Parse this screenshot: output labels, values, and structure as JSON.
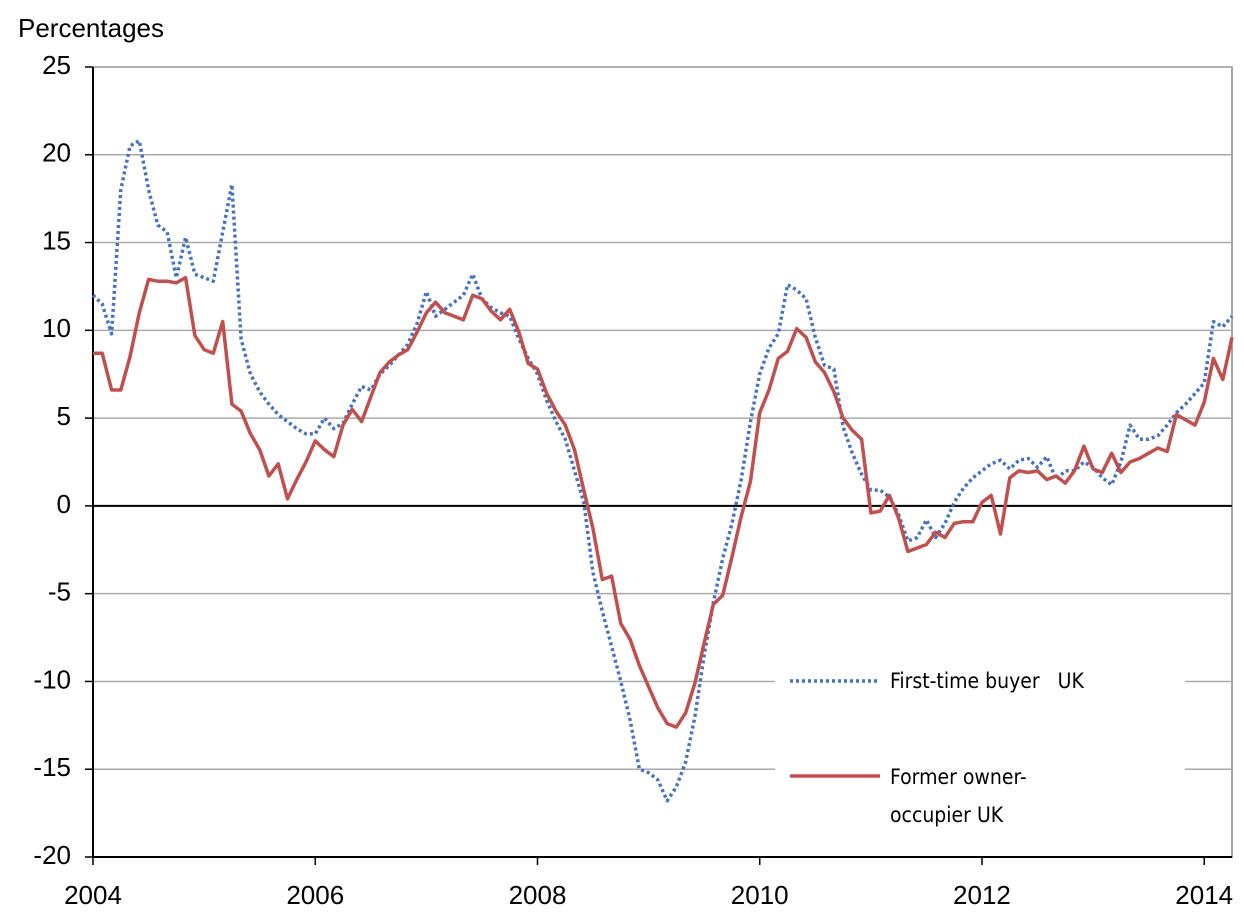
{
  "chart_data": {
    "type": "line",
    "y_label": "Percentages",
    "x": [
      2004,
      2004.083,
      2004.167,
      2004.25,
      2004.333,
      2004.417,
      2004.5,
      2004.583,
      2004.667,
      2004.75,
      2004.833,
      2004.917,
      2005,
      2005.083,
      2005.167,
      2005.25,
      2005.333,
      2005.417,
      2005.5,
      2005.583,
      2005.667,
      2005.75,
      2005.833,
      2005.917,
      2006,
      2006.083,
      2006.167,
      2006.25,
      2006.333,
      2006.417,
      2006.5,
      2006.583,
      2006.667,
      2006.75,
      2006.833,
      2006.917,
      2007,
      2007.083,
      2007.167,
      2007.25,
      2007.333,
      2007.417,
      2007.5,
      2007.583,
      2007.667,
      2007.75,
      2007.833,
      2007.917,
      2008,
      2008.083,
      2008.167,
      2008.25,
      2008.333,
      2008.417,
      2008.5,
      2008.583,
      2008.667,
      2008.75,
      2008.833,
      2008.917,
      2009,
      2009.083,
      2009.167,
      2009.25,
      2009.333,
      2009.417,
      2009.5,
      2009.583,
      2009.667,
      2009.75,
      2009.833,
      2009.917,
      2010,
      2010.083,
      2010.167,
      2010.25,
      2010.333,
      2010.417,
      2010.5,
      2010.583,
      2010.667,
      2010.75,
      2010.833,
      2010.917,
      2011,
      2011.083,
      2011.167,
      2011.25,
      2011.333,
      2011.417,
      2011.5,
      2011.583,
      2011.667,
      2011.75,
      2011.833,
      2011.917,
      2012,
      2012.083,
      2012.167,
      2012.25,
      2012.333,
      2012.417,
      2012.5,
      2012.583,
      2012.667,
      2012.75,
      2012.833,
      2012.917,
      2013,
      2013.083,
      2013.167,
      2013.25,
      2013.333,
      2013.417,
      2013.5,
      2013.583,
      2013.667,
      2013.75,
      2013.833,
      2013.917,
      2014,
      2014.083,
      2014.167,
      2014.25
    ],
    "series": [
      {
        "name": "First-time buyer   UK",
        "color": "#4472c4",
        "style": "dotted",
        "values": [
          12.0,
          11.5,
          9.8,
          18.0,
          20.5,
          20.8,
          18.0,
          16.0,
          15.6,
          13.0,
          15.3,
          13.2,
          13.0,
          12.8,
          15.6,
          18.3,
          9.5,
          7.5,
          6.5,
          5.8,
          5.2,
          4.8,
          4.4,
          4.1,
          4.1,
          5.0,
          4.4,
          4.7,
          5.8,
          6.8,
          6.6,
          7.5,
          8.0,
          8.6,
          9.2,
          10.4,
          12.2,
          10.8,
          11.2,
          11.6,
          12.0,
          13.2,
          11.8,
          11.3,
          11.0,
          10.8,
          9.5,
          8.4,
          7.5,
          6.0,
          4.8,
          3.8,
          2.0,
          0.2,
          -3.8,
          -6.0,
          -8.0,
          -10.0,
          -12.2,
          -15.0,
          -15.2,
          -15.6,
          -16.8,
          -16.0,
          -14.6,
          -12.0,
          -8.5,
          -5.5,
          -3.0,
          -1.0,
          1.5,
          4.8,
          7.5,
          9.0,
          9.8,
          12.6,
          12.3,
          11.8,
          9.6,
          8.0,
          7.8,
          4.5,
          3.0,
          1.8,
          0.9,
          0.9,
          0.5,
          -0.5,
          -2.0,
          -1.8,
          -0.8,
          -1.8,
          -1.0,
          0.2,
          1.0,
          1.6,
          2.0,
          2.4,
          2.6,
          2.1,
          2.6,
          2.7,
          2.2,
          2.8,
          1.5,
          2.0,
          2.0,
          2.5,
          2.2,
          1.6,
          1.2,
          2.5,
          4.6,
          3.8,
          3.8,
          4.0,
          4.6,
          5.3,
          5.8,
          6.4,
          7.0,
          10.5,
          10.2,
          10.8
        ]
      },
      {
        "name": "Former owner-occupier UK",
        "color": "#c0504d",
        "style": "solid",
        "values": [
          8.7,
          8.7,
          6.6,
          6.6,
          8.5,
          11.0,
          12.9,
          12.8,
          12.8,
          12.7,
          13.0,
          9.7,
          8.9,
          8.7,
          10.5,
          5.8,
          5.4,
          4.1,
          3.2,
          1.7,
          2.4,
          0.4,
          1.5,
          2.5,
          3.7,
          3.2,
          2.8,
          4.6,
          5.5,
          4.8,
          6.2,
          7.6,
          8.2,
          8.6,
          8.9,
          9.9,
          11.0,
          11.6,
          11.0,
          10.8,
          10.6,
          12.0,
          11.8,
          11.1,
          10.6,
          11.2,
          9.9,
          8.1,
          7.8,
          6.4,
          5.4,
          4.6,
          3.2,
          0.9,
          -1.3,
          -4.2,
          -4.0,
          -6.7,
          -7.6,
          -9.1,
          -10.3,
          -11.5,
          -12.4,
          -12.6,
          -11.8,
          -10.1,
          -7.8,
          -5.6,
          -5.1,
          -2.9,
          -0.6,
          1.4,
          5.3,
          6.6,
          8.4,
          8.8,
          10.1,
          9.6,
          8.2,
          7.6,
          6.5,
          5.0,
          4.3,
          3.8,
          -0.4,
          -0.3,
          0.6,
          -0.7,
          -2.6,
          -2.4,
          -2.2,
          -1.5,
          -1.8,
          -1.0,
          -0.9,
          -0.9,
          0.2,
          0.6,
          -1.6,
          1.6,
          2.0,
          1.9,
          2.0,
          1.5,
          1.7,
          1.3,
          2.0,
          3.4,
          2.1,
          1.9,
          3.0,
          1.9,
          2.5,
          2.7,
          3.0,
          3.3,
          3.1,
          5.2,
          4.9,
          4.6,
          5.9,
          8.4,
          7.2,
          9.6
        ]
      }
    ],
    "xlim": [
      2004,
      2014.25
    ],
    "xticks": [
      2004,
      2006,
      2008,
      2010,
      2012,
      2014
    ],
    "ylim": [
      -20,
      25
    ],
    "yticks": [
      -20,
      -15,
      -10,
      -5,
      0,
      5,
      10,
      15,
      20,
      25
    ],
    "grid": true,
    "legend": "lower right"
  }
}
